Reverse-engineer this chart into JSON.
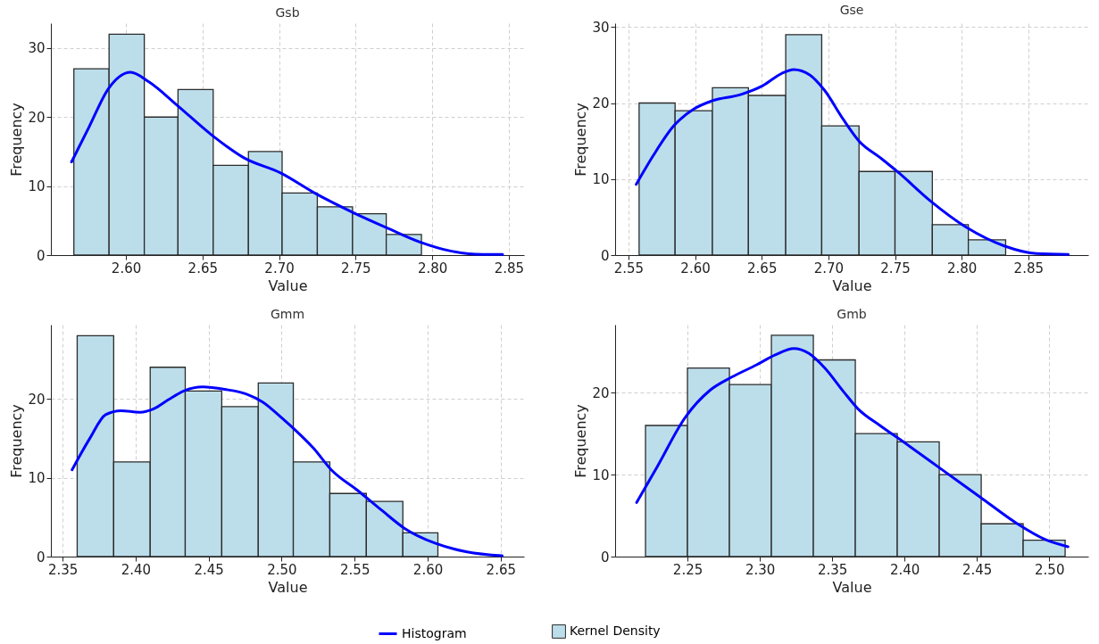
{
  "chart_data": [
    {
      "type": "histogram",
      "title": "Gsb",
      "xlabel": "Value",
      "ylabel": "Frequency",
      "xlim": [
        2.551,
        2.86
      ],
      "ylim": [
        0,
        33.6
      ],
      "xticks": [
        {
          "value": 2.6,
          "label": "2.60"
        },
        {
          "value": 2.65,
          "label": "2.65"
        },
        {
          "value": 2.7,
          "label": "2.70"
        },
        {
          "value": 2.75,
          "label": "2.75"
        },
        {
          "value": 2.8,
          "label": "2.80"
        },
        {
          "value": 2.85,
          "label": "2.85"
        }
      ],
      "yticks": [
        0,
        10,
        20,
        30
      ],
      "grid": true,
      "legend": "bottom",
      "series": [
        {
          "name": "Kernel Density",
          "color": "#bcdeea",
          "bins": [
            2.566,
            2.589,
            2.612,
            2.634,
            2.657,
            2.68,
            2.702,
            2.725,
            2.748,
            2.77,
            2.793
          ],
          "values": [
            27,
            32,
            20,
            24,
            13,
            15,
            9,
            7,
            6,
            3
          ]
        },
        {
          "type": "line",
          "name": "Histogram",
          "color": "#0000ff",
          "x": [
            2.5645,
            2.576,
            2.5885,
            2.603,
            2.615,
            2.634,
            2.656,
            2.677,
            2.701,
            2.724,
            2.749,
            2.771,
            2.792,
            2.812,
            2.833,
            2.846
          ],
          "values": [
            13.5,
            18.6,
            24.1,
            26.5,
            25.1,
            21.6,
            17.4,
            14.1,
            11.9,
            8.9,
            6.1,
            3.9,
            1.9,
            0.6,
            0.1,
            0.1
          ]
        }
      ]
    },
    {
      "type": "histogram",
      "title": "Gse",
      "xlabel": "Value",
      "ylabel": "Frequency",
      "xlim": [
        2.54,
        2.895
      ],
      "ylim": [
        0,
        30.5
      ],
      "xticks": [
        {
          "value": 2.55,
          "label": "2.55"
        },
        {
          "value": 2.6,
          "label": "2.60"
        },
        {
          "value": 2.65,
          "label": "2.65"
        },
        {
          "value": 2.7,
          "label": "2.70"
        },
        {
          "value": 2.75,
          "label": "2.75"
        },
        {
          "value": 2.8,
          "label": "2.80"
        },
        {
          "value": 2.85,
          "label": "2.85"
        }
      ],
      "yticks": [
        0,
        10,
        20,
        30
      ],
      "grid": true,
      "legend": "bottom",
      "series": [
        {
          "name": "Kernel Density",
          "color": "#bcdeea",
          "bins": [
            2.558,
            2.585,
            2.613,
            2.64,
            2.668,
            2.695,
            2.723,
            2.75,
            2.778,
            2.805,
            2.833
          ],
          "values": [
            20,
            19,
            22,
            21,
            29,
            17,
            11,
            11,
            4,
            2
          ]
        },
        {
          "type": "line",
          "name": "Histogram",
          "color": "#0000ff",
          "x": [
            2.5558,
            2.569,
            2.584,
            2.599,
            2.613,
            2.634,
            2.651,
            2.665,
            2.674,
            2.686,
            2.697,
            2.711,
            2.723,
            2.739,
            2.753,
            2.776,
            2.804,
            2.832,
            2.856,
            2.88
          ],
          "values": [
            9.3,
            13.2,
            17.0,
            19.2,
            20.3,
            21.1,
            22.3,
            23.9,
            24.4,
            23.7,
            21.7,
            17.9,
            15.0,
            12.8,
            10.8,
            7.2,
            3.6,
            1.2,
            0.2,
            0.1
          ]
        }
      ]
    },
    {
      "type": "histogram",
      "title": "Gmm",
      "xlabel": "Value",
      "ylabel": "Frequency",
      "xlim": [
        2.342,
        2.666
      ],
      "ylim": [
        0,
        29.4
      ],
      "xticks": [
        {
          "value": 2.35,
          "label": "2.35"
        },
        {
          "value": 2.4,
          "label": "2.40"
        },
        {
          "value": 2.45,
          "label": "2.45"
        },
        {
          "value": 2.5,
          "label": "2.50"
        },
        {
          "value": 2.55,
          "label": "2.55"
        },
        {
          "value": 2.6,
          "label": "2.60"
        },
        {
          "value": 2.65,
          "label": "2.65"
        }
      ],
      "yticks": [
        0,
        10,
        20
      ],
      "grid": true,
      "legend": "bottom",
      "series": [
        {
          "name": "Kernel Density",
          "color": "#bcdeea",
          "bins": [
            2.36,
            2.385,
            2.41,
            2.434,
            2.459,
            2.484,
            2.508,
            2.533,
            2.558,
            2.583,
            2.607
          ],
          "values": [
            28,
            12,
            24,
            21,
            19,
            22,
            12,
            8,
            7,
            3
          ]
        },
        {
          "type": "line",
          "name": "Histogram",
          "color": "#0000ff",
          "x": [
            2.3565,
            2.3687,
            2.3795,
            2.39,
            2.403,
            2.412,
            2.4225,
            2.433,
            2.446,
            2.461,
            2.476,
            2.487,
            2.5,
            2.509,
            2.522,
            2.534,
            2.552,
            2.569,
            2.584,
            2.605,
            2.627,
            2.651
          ],
          "values": [
            11.0,
            15.0,
            18.0,
            18.5,
            18.3,
            18.7,
            19.9,
            21.0,
            21.5,
            21.2,
            20.6,
            19.6,
            17.6,
            16.1,
            13.7,
            11.0,
            8.4,
            5.8,
            3.6,
            1.7,
            0.6,
            0.1
          ]
        }
      ]
    },
    {
      "type": "histogram",
      "title": "Gmb",
      "xlabel": "Value",
      "ylabel": "Frequency",
      "xlim": [
        2.2,
        2.527
      ],
      "ylim": [
        0,
        28.3
      ],
      "xticks": [
        {
          "value": 2.25,
          "label": "2.25"
        },
        {
          "value": 2.3,
          "label": "2.30"
        },
        {
          "value": 2.35,
          "label": "2.35"
        },
        {
          "value": 2.4,
          "label": "2.40"
        },
        {
          "value": 2.45,
          "label": "2.45"
        },
        {
          "value": 2.5,
          "label": "2.50"
        }
      ],
      "yticks": [
        0,
        10,
        20
      ],
      "grid": true,
      "legend": "bottom",
      "series": [
        {
          "name": "Kernel Density",
          "color": "#bcdeea",
          "bins": [
            2.221,
            2.25,
            2.279,
            2.308,
            2.337,
            2.366,
            2.395,
            2.424,
            2.453,
            2.482,
            2.511
          ],
          "values": [
            16,
            23,
            21,
            27,
            24,
            15,
            14,
            10,
            4,
            2
          ]
        },
        {
          "type": "line",
          "name": "Histogram",
          "color": "#0000ff",
          "x": [
            2.2149,
            2.2292,
            2.2485,
            2.2656,
            2.2806,
            2.2978,
            2.3106,
            2.3235,
            2.334,
            2.345,
            2.358,
            2.368,
            2.383,
            2.4,
            2.426,
            2.452,
            2.478,
            2.497,
            2.513
          ],
          "values": [
            6.6,
            11.0,
            17.0,
            20.3,
            21.9,
            23.4,
            24.6,
            25.4,
            24.8,
            23.0,
            20.1,
            18.0,
            16.0,
            13.9,
            10.6,
            7.3,
            4.0,
            2.1,
            1.2
          ]
        }
      ]
    }
  ]
}
